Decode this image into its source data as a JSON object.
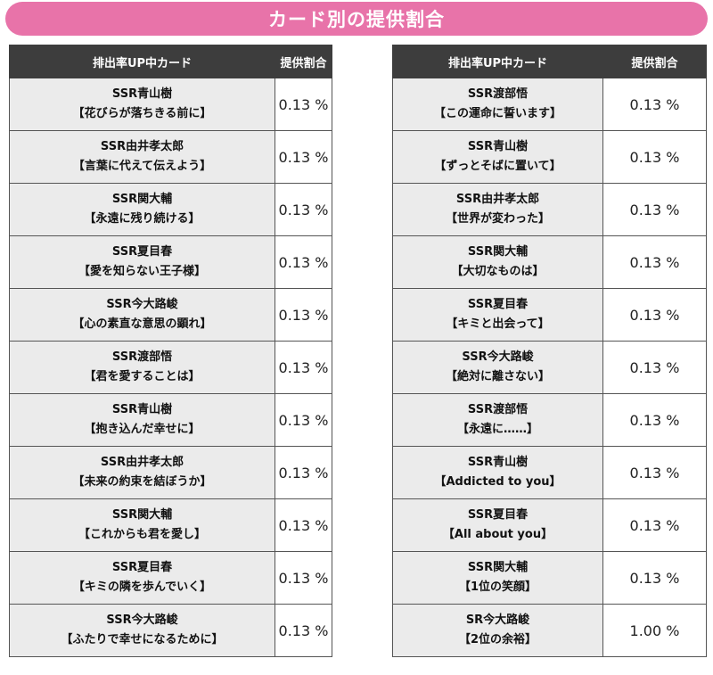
{
  "banner": {
    "title": "カード別の提供割合"
  },
  "left_table": {
    "headers": {
      "card": "排出率UP中カード",
      "rate": "提供割合"
    },
    "rows": [
      {
        "name": "SSR青山樹",
        "title": "【花びらが落ちきる前に】",
        "rate": "0.13 %"
      },
      {
        "name": "SSR由井孝太郎",
        "title": "【言葉に代えて伝えよう】",
        "rate": "0.13 %"
      },
      {
        "name": "SSR関大輔",
        "title": "【永遠に残り続ける】",
        "rate": "0.13 %"
      },
      {
        "name": "SSR夏目春",
        "title": "【愛を知らない王子様】",
        "rate": "0.13 %"
      },
      {
        "name": "SSR今大路峻",
        "title": "【心の素直な意思の顕れ】",
        "rate": "0.13 %"
      },
      {
        "name": "SSR渡部悟",
        "title": "【君を愛することは】",
        "rate": "0.13 %"
      },
      {
        "name": "SSR青山樹",
        "title": "【抱き込んだ幸せに】",
        "rate": "0.13 %"
      },
      {
        "name": "SSR由井孝太郎",
        "title": "【未来の約束を結ぼうか】",
        "rate": "0.13 %"
      },
      {
        "name": "SSR関大輔",
        "title": "【これからも君を愛し】",
        "rate": "0.13 %"
      },
      {
        "name": "SSR夏目春",
        "title": "【キミの隣を歩んでいく】",
        "rate": "0.13 %"
      },
      {
        "name": "SSR今大路峻",
        "title": "【ふたりで幸せになるために】",
        "rate": "0.13 %"
      }
    ]
  },
  "right_table": {
    "headers": {
      "card": "排出率UP中カード",
      "rate": "提供割合"
    },
    "rows": [
      {
        "name": "SSR渡部悟",
        "title": "【この運命に誓います】",
        "rate": "0.13 %"
      },
      {
        "name": "SSR青山樹",
        "title": "【ずっとそばに置いて】",
        "rate": "0.13 %"
      },
      {
        "name": "SSR由井孝太郎",
        "title": "【世界が変わった】",
        "rate": "0.13 %"
      },
      {
        "name": "SSR関大輔",
        "title": "【大切なものは】",
        "rate": "0.13 %"
      },
      {
        "name": "SSR夏目春",
        "title": "【キミと出会って】",
        "rate": "0.13 %"
      },
      {
        "name": "SSR今大路峻",
        "title": "【絶対に離さない】",
        "rate": "0.13 %"
      },
      {
        "name": "SSR渡部悟",
        "title": "【永遠に……】",
        "rate": "0.13 %"
      },
      {
        "name": "SSR青山樹",
        "title": "【Addicted to you】",
        "rate": "0.13 %"
      },
      {
        "name": "SSR夏目春",
        "title": "【All about you】",
        "rate": "0.13 %"
      },
      {
        "name": "SSR関大輔",
        "title": "【1位の笑顔】",
        "rate": "0.13 %"
      },
      {
        "name": "SR今大路峻",
        "title": "【2位の余裕】",
        "rate": "1.00 %"
      }
    ]
  }
}
